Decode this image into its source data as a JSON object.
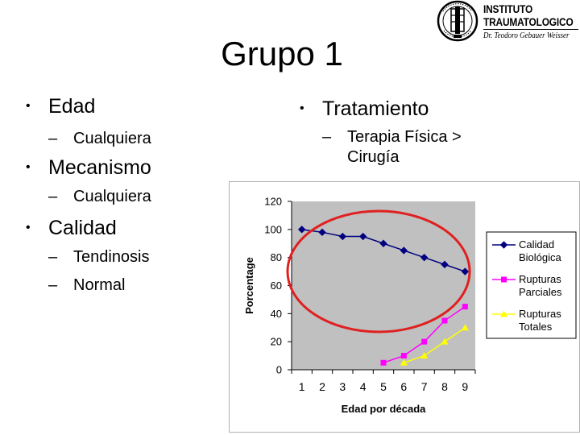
{
  "slide": {
    "title": "Grupo 1",
    "left_bullets": [
      {
        "label": "Edad",
        "sub": [
          "Cualquiera"
        ]
      },
      {
        "label": "Mecanismo",
        "sub": [
          "Cualquiera"
        ]
      },
      {
        "label": "Calidad",
        "sub": [
          "Tendinosis",
          "Normal"
        ]
      }
    ],
    "right_bullet": {
      "label": "Tratamiento",
      "sub_line1": "Terapia Física >",
      "sub_line2": "Cirugía"
    }
  },
  "logo": {
    "line1": "INSTITUTO",
    "line2": "TRAUMATOLOGICO",
    "subtitle": "Dr. Teodoro Gebauer Weisser"
  },
  "colors": {
    "plot_bg": "#c0c0c0",
    "calidad": "#000080",
    "rupturas_parciales": "#ff00ff",
    "rupturas_totales": "#ffff00",
    "highlight_ellipse": "#e02020"
  },
  "chart_data": {
    "type": "line",
    "x": [
      1,
      2,
      3,
      4,
      5,
      6,
      7,
      8,
      9
    ],
    "xlabel": "Edad por década",
    "ylabel": "Porcentage",
    "ylim": [
      0,
      120
    ],
    "yticks": [
      0,
      20,
      40,
      60,
      80,
      100,
      120
    ],
    "grid": false,
    "legend": "right",
    "series": [
      {
        "name_line1": "Calidad",
        "name_line2": "Biológica",
        "marker": "diamond",
        "values": [
          100,
          98,
          95,
          95,
          90,
          85,
          80,
          75,
          70
        ]
      },
      {
        "name_line1": "Rupturas",
        "name_line2": "Parciales",
        "marker": "square",
        "values": [
          null,
          null,
          null,
          null,
          5,
          10,
          20,
          35,
          45
        ]
      },
      {
        "name_line1": "Rupturas",
        "name_line2": "Totales",
        "marker": "triangle",
        "values": [
          null,
          null,
          null,
          null,
          null,
          5,
          10,
          20,
          30
        ]
      }
    ],
    "annotation": "red ellipse highlighting the Calidad Biológica curve"
  }
}
